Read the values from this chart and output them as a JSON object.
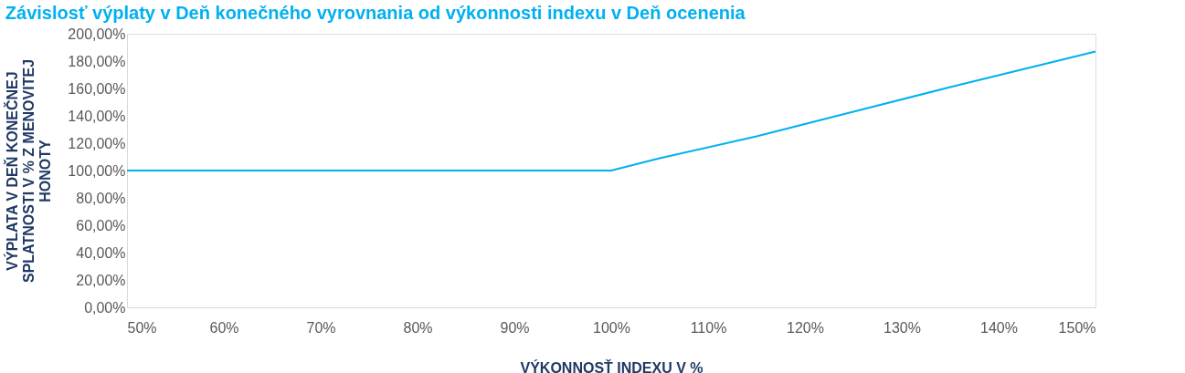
{
  "chart_data": {
    "type": "line",
    "title": "Závislosť výplaty v Deň konečného vyrovnania od výkonnosti indexu v Deň ocenenia",
    "xlabel": "VÝKONNOSŤ INDEXU V %",
    "ylabel": [
      "VÝPLATA V DEŇ KONEČNEJ",
      "SPLATNOSTI V % Z MENOVITEJ",
      "HONOTY"
    ],
    "x": [
      50,
      60,
      70,
      80,
      90,
      100,
      105,
      115,
      125,
      135,
      150
    ],
    "series": [
      {
        "color": "#00b0f0",
        "values": [
          100,
          100,
          100,
          100,
          100,
          100,
          109,
          125,
          143,
          161,
          187
        ]
      }
    ],
    "xlim": [
      50,
      150
    ],
    "xticks": [
      {
        "value": 50,
        "label": "50%"
      },
      {
        "value": 60,
        "label": "60%"
      },
      {
        "value": 70,
        "label": "70%"
      },
      {
        "value": 80,
        "label": "80%"
      },
      {
        "value": 90,
        "label": "90%"
      },
      {
        "value": 100,
        "label": "100%"
      },
      {
        "value": 110,
        "label": "110%"
      },
      {
        "value": 120,
        "label": "120%"
      },
      {
        "value": 130,
        "label": "130%"
      },
      {
        "value": 140,
        "label": "140%"
      },
      {
        "value": 150,
        "label": "150%"
      }
    ],
    "ylim": [
      0,
      200
    ],
    "yticks": [
      {
        "value": 0,
        "label": "0,00%"
      },
      {
        "value": 20,
        "label": "20,00%"
      },
      {
        "value": 40,
        "label": "40,00%"
      },
      {
        "value": 60,
        "label": "60,00%"
      },
      {
        "value": 80,
        "label": "80,00%"
      },
      {
        "value": 100,
        "label": "100,00%"
      },
      {
        "value": 120,
        "label": "120,00%"
      },
      {
        "value": 140,
        "label": "140,00%"
      },
      {
        "value": 160,
        "label": "160,00%"
      },
      {
        "value": 180,
        "label": "180,00%"
      },
      {
        "value": 200,
        "label": "200,00%"
      }
    ],
    "grid": false,
    "line_style": "solid",
    "marker": "none"
  }
}
